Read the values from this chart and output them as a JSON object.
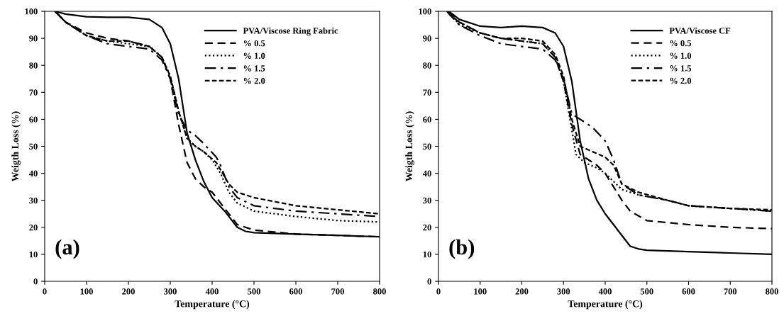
{
  "chart_data": [
    {
      "type": "line",
      "xlabel": "Temperature (°C)",
      "ylabel": "Weigth Loss (%)",
      "annotations": [
        "(a)"
      ],
      "xlim": [
        0,
        800
      ],
      "ylim": [
        0,
        100
      ],
      "xticks": [
        0,
        100,
        200,
        300,
        400,
        500,
        600,
        700,
        800
      ],
      "yticks": [
        0,
        10,
        20,
        30,
        40,
        50,
        60,
        70,
        80,
        90,
        100
      ],
      "grid": false,
      "legend": "top right",
      "marker": "none",
      "series": [
        {
          "name": "PVA/Viscose Ring Fabric",
          "color": "#000000",
          "line_style": "solid",
          "x": [
            25,
            50,
            100,
            150,
            200,
            250,
            280,
            300,
            320,
            340,
            360,
            380,
            400,
            430,
            460,
            480,
            500,
            600,
            700,
            800
          ],
          "values": [
            100,
            99,
            98,
            97.8,
            97.8,
            97,
            94,
            88,
            75,
            55,
            45,
            37,
            31,
            26,
            20,
            18.5,
            18,
            17.5,
            17,
            16.5
          ]
        },
        {
          "name": "% 0.5",
          "color": "#000000",
          "line_style": "dashed",
          "x": [
            25,
            50,
            100,
            150,
            200,
            250,
            280,
            300,
            320,
            340,
            360,
            380,
            400,
            430,
            460,
            500,
            600,
            700,
            800
          ],
          "values": [
            100,
            96,
            92,
            90,
            89,
            87,
            83,
            75,
            58,
            44,
            38,
            35,
            33,
            27,
            21,
            19,
            17.5,
            17,
            16.5
          ]
        },
        {
          "name": "% 1.0",
          "color": "#000000",
          "line_style": "dotted",
          "x": [
            25,
            50,
            100,
            150,
            200,
            250,
            280,
            300,
            320,
            340,
            360,
            380,
            400,
            420,
            440,
            460,
            500,
            600,
            700,
            800
          ],
          "values": [
            100,
            96,
            91,
            89,
            88,
            87,
            83,
            76,
            63,
            53,
            50,
            48,
            45,
            40,
            33,
            29,
            26,
            24,
            22.5,
            22
          ]
        },
        {
          "name": "% 1.5",
          "color": "#000000",
          "line_style": "dashdot",
          "x": [
            25,
            50,
            100,
            150,
            200,
            250,
            280,
            300,
            320,
            340,
            360,
            380,
            410,
            420,
            440,
            460,
            500,
            600,
            700,
            800
          ],
          "values": [
            100,
            96,
            91,
            88,
            87,
            86,
            82,
            75,
            62,
            56,
            54,
            51,
            46,
            43,
            35,
            31,
            28,
            26,
            25,
            24
          ]
        },
        {
          "name": "% 2.0",
          "color": "#000000",
          "line_style": "finedashed",
          "x": [
            25,
            50,
            100,
            150,
            200,
            250,
            280,
            300,
            320,
            340,
            360,
            380,
            410,
            440,
            460,
            500,
            600,
            700,
            800
          ],
          "values": [
            100,
            96,
            91,
            89,
            89,
            87,
            83,
            76,
            63,
            53,
            50,
            48,
            44,
            36,
            33,
            31,
            28,
            26.5,
            25
          ]
        }
      ]
    },
    {
      "type": "line",
      "xlabel": "Temperature (°C)",
      "ylabel": "Weigth Loss (%)",
      "annotations": [
        "(b)"
      ],
      "xlim": [
        0,
        800
      ],
      "ylim": [
        0,
        100
      ],
      "xticks": [
        0,
        100,
        200,
        300,
        400,
        500,
        600,
        700,
        800
      ],
      "yticks": [
        0,
        10,
        20,
        30,
        40,
        50,
        60,
        70,
        80,
        90,
        100
      ],
      "grid": false,
      "legend": "top right",
      "marker": "none",
      "series": [
        {
          "name": "PVA/Viscose CF",
          "color": "#000000",
          "line_style": "solid",
          "x": [
            25,
            50,
            100,
            150,
            200,
            250,
            280,
            300,
            320,
            340,
            360,
            380,
            400,
            420,
            440,
            460,
            480,
            500,
            600,
            700,
            800
          ],
          "values": [
            100,
            97,
            94.5,
            94,
            94.5,
            94,
            92,
            87,
            74,
            52,
            38,
            30,
            25,
            21,
            17,
            13,
            12,
            11.5,
            11,
            10.5,
            10
          ]
        },
        {
          "name": "% 0.5",
          "color": "#000000",
          "line_style": "dashed",
          "x": [
            25,
            50,
            100,
            150,
            200,
            250,
            280,
            300,
            320,
            340,
            360,
            380,
            400,
            420,
            440,
            460,
            500,
            600,
            700,
            800
          ],
          "values": [
            100,
            96,
            92,
            90,
            89,
            88,
            83,
            74,
            58,
            47,
            45,
            43,
            40,
            35,
            30,
            26,
            22.5,
            21,
            20,
            19.5
          ]
        },
        {
          "name": "% 1.0",
          "color": "#000000",
          "line_style": "dotted",
          "x": [
            25,
            50,
            100,
            150,
            200,
            250,
            280,
            300,
            320,
            330,
            350,
            380,
            400,
            420,
            440,
            480,
            550,
            600,
            700,
            800
          ],
          "values": [
            100,
            95,
            92,
            90,
            89,
            88,
            83,
            74,
            56,
            47,
            44,
            42,
            40,
            37,
            34,
            32,
            30,
            28,
            27,
            26
          ]
        },
        {
          "name": "% 1.5",
          "color": "#000000",
          "line_style": "dashdot",
          "x": [
            20,
            50,
            100,
            150,
            200,
            250,
            280,
            300,
            320,
            340,
            370,
            400,
            420,
            440,
            480,
            550,
            600,
            700,
            800
          ],
          "values": [
            100,
            95,
            91,
            88,
            87,
            86,
            82,
            75,
            62,
            60,
            57,
            52,
            45,
            36,
            32,
            30,
            28,
            27,
            26
          ]
        },
        {
          "name": "% 2.0",
          "color": "#000000",
          "line_style": "finedashed",
          "x": [
            25,
            50,
            100,
            150,
            200,
            250,
            280,
            300,
            320,
            340,
            370,
            400,
            420,
            440,
            480,
            550,
            600,
            700,
            800
          ],
          "values": [
            99,
            96,
            92,
            90,
            90,
            89,
            84,
            76,
            60,
            50,
            48,
            46,
            43,
            36,
            33,
            30,
            28,
            27,
            26.5
          ]
        }
      ]
    }
  ]
}
